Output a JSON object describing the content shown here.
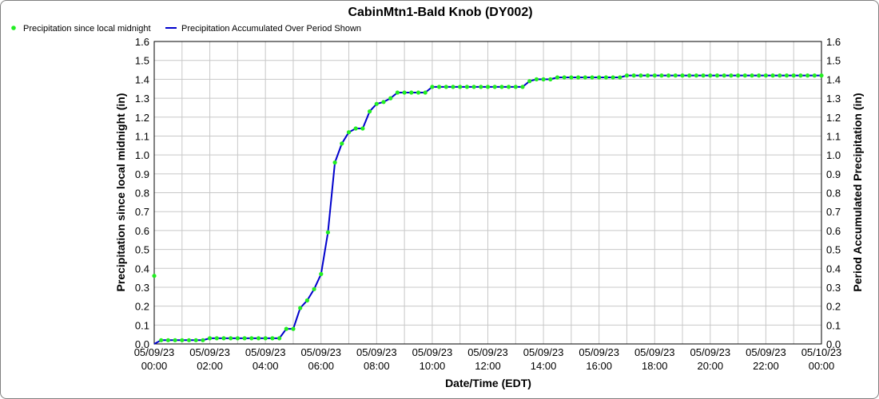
{
  "chart_data": {
    "type": "line",
    "title": "CabinMtn1-Bald Knob (DY002)",
    "xlabel": "Date/Time (EDT)",
    "ylabel_left": "Precipitation since local midnight (in)",
    "ylabel_right": "Period Accumulated Precipitation (in)",
    "ylim": [
      0,
      1.6
    ],
    "yticks": [
      "0.0",
      "0.1",
      "0.2",
      "0.3",
      "0.4",
      "0.5",
      "0.6",
      "0.7",
      "0.8",
      "0.9",
      "1.0",
      "1.1",
      "1.2",
      "1.3",
      "1.4",
      "1.5",
      "1.6"
    ],
    "xlim": [
      "05/09/23 00:00",
      "05/10/23 00:00"
    ],
    "xticks": [
      {
        "hour": 0,
        "date": "05/09/23",
        "time": "00:00"
      },
      {
        "hour": 2,
        "date": "05/09/23",
        "time": "02:00"
      },
      {
        "hour": 4,
        "date": "05/09/23",
        "time": "04:00"
      },
      {
        "hour": 6,
        "date": "05/09/23",
        "time": "06:00"
      },
      {
        "hour": 8,
        "date": "05/09/23",
        "time": "08:00"
      },
      {
        "hour": 10,
        "date": "05/09/23",
        "time": "10:00"
      },
      {
        "hour": 12,
        "date": "05/09/23",
        "time": "12:00"
      },
      {
        "hour": 14,
        "date": "05/09/23",
        "time": "14:00"
      },
      {
        "hour": 16,
        "date": "05/09/23",
        "time": "16:00"
      },
      {
        "hour": 18,
        "date": "05/09/23",
        "time": "18:00"
      },
      {
        "hour": 20,
        "date": "05/09/23",
        "time": "20:00"
      },
      {
        "hour": 22,
        "date": "05/09/23",
        "time": "22:00"
      },
      {
        "hour": 24,
        "date": "05/10/23",
        "time": "00:00"
      }
    ],
    "grid": true,
    "legend_position": "top-left",
    "series": [
      {
        "name": "Precipitation since local midnight",
        "style": "scatter",
        "color": "#22ee22",
        "x_hours": [
          0.0,
          0.25,
          0.5,
          0.75,
          1.0,
          1.25,
          1.5,
          1.75,
          2.0,
          2.25,
          2.5,
          2.75,
          3.0,
          3.25,
          3.5,
          3.75,
          4.0,
          4.25,
          4.5,
          4.75,
          5.0,
          5.25,
          5.5,
          5.75,
          6.0,
          6.25,
          6.5,
          6.75,
          7.0,
          7.25,
          7.5,
          7.75,
          8.0,
          8.25,
          8.5,
          8.75,
          9.0,
          9.25,
          9.5,
          9.75,
          10.0,
          10.25,
          10.5,
          10.75,
          11.0,
          11.25,
          11.5,
          11.75,
          12.0,
          12.25,
          12.5,
          12.75,
          13.0,
          13.25,
          13.5,
          13.75,
          14.0,
          14.25,
          14.5,
          14.75,
          15.0,
          15.25,
          15.5,
          15.75,
          16.0,
          16.25,
          16.5,
          16.75,
          17.0,
          17.25,
          17.5,
          17.75,
          18.0,
          18.25,
          18.5,
          18.75,
          19.0,
          19.25,
          19.5,
          19.75,
          20.0,
          20.25,
          20.5,
          20.75,
          21.0,
          21.25,
          21.5,
          21.75,
          22.0,
          22.25,
          22.5,
          22.75,
          23.0,
          23.25,
          23.5,
          23.75,
          24.0
        ],
        "values": [
          0.36,
          0.02,
          0.02,
          0.02,
          0.02,
          0.02,
          0.02,
          0.02,
          0.03,
          0.03,
          0.03,
          0.03,
          0.03,
          0.03,
          0.03,
          0.03,
          0.03,
          0.03,
          0.03,
          0.08,
          0.08,
          0.19,
          0.23,
          0.29,
          0.37,
          0.59,
          0.96,
          1.06,
          1.12,
          1.14,
          1.14,
          1.23,
          1.27,
          1.28,
          1.3,
          1.33,
          1.33,
          1.33,
          1.33,
          1.33,
          1.36,
          1.36,
          1.36,
          1.36,
          1.36,
          1.36,
          1.36,
          1.36,
          1.36,
          1.36,
          1.36,
          1.36,
          1.36,
          1.36,
          1.39,
          1.4,
          1.4,
          1.4,
          1.41,
          1.41,
          1.41,
          1.41,
          1.41,
          1.41,
          1.41,
          1.41,
          1.41,
          1.41,
          1.42,
          1.42,
          1.42,
          1.42,
          1.42,
          1.42,
          1.42,
          1.42,
          1.42,
          1.42,
          1.42,
          1.42,
          1.42,
          1.42,
          1.42,
          1.42,
          1.42,
          1.42,
          1.42,
          1.42,
          1.42,
          1.42,
          1.42,
          1.42,
          1.42,
          1.42,
          1.42,
          1.42,
          1.42
        ]
      },
      {
        "name": "Precipitation Accumulated Over Period Shown",
        "style": "line",
        "color": "#0000cc",
        "x_hours": [
          0.0,
          0.25,
          0.5,
          0.75,
          1.0,
          1.25,
          1.5,
          1.75,
          2.0,
          2.25,
          2.5,
          2.75,
          3.0,
          3.25,
          3.5,
          3.75,
          4.0,
          4.25,
          4.5,
          4.75,
          5.0,
          5.25,
          5.5,
          5.75,
          6.0,
          6.25,
          6.5,
          6.75,
          7.0,
          7.25,
          7.5,
          7.75,
          8.0,
          8.25,
          8.5,
          8.75,
          9.0,
          9.25,
          9.5,
          9.75,
          10.0,
          10.25,
          10.5,
          10.75,
          11.0,
          11.25,
          11.5,
          11.75,
          12.0,
          12.25,
          12.5,
          12.75,
          13.0,
          13.25,
          13.5,
          13.75,
          14.0,
          14.25,
          14.5,
          14.75,
          15.0,
          15.25,
          15.5,
          15.75,
          16.0,
          16.25,
          16.5,
          16.75,
          17.0,
          17.25,
          17.5,
          17.75,
          18.0,
          18.25,
          18.5,
          18.75,
          19.0,
          19.25,
          19.5,
          19.75,
          20.0,
          20.25,
          20.5,
          20.75,
          21.0,
          21.25,
          21.5,
          21.75,
          22.0,
          22.25,
          22.5,
          22.75,
          23.0,
          23.25,
          23.5,
          23.75,
          24.0
        ],
        "values": [
          0.0,
          0.02,
          0.02,
          0.02,
          0.02,
          0.02,
          0.02,
          0.02,
          0.03,
          0.03,
          0.03,
          0.03,
          0.03,
          0.03,
          0.03,
          0.03,
          0.03,
          0.03,
          0.03,
          0.08,
          0.08,
          0.19,
          0.23,
          0.29,
          0.37,
          0.59,
          0.96,
          1.06,
          1.12,
          1.14,
          1.14,
          1.23,
          1.27,
          1.28,
          1.3,
          1.33,
          1.33,
          1.33,
          1.33,
          1.33,
          1.36,
          1.36,
          1.36,
          1.36,
          1.36,
          1.36,
          1.36,
          1.36,
          1.36,
          1.36,
          1.36,
          1.36,
          1.36,
          1.36,
          1.39,
          1.4,
          1.4,
          1.4,
          1.41,
          1.41,
          1.41,
          1.41,
          1.41,
          1.41,
          1.41,
          1.41,
          1.41,
          1.41,
          1.42,
          1.42,
          1.42,
          1.42,
          1.42,
          1.42,
          1.42,
          1.42,
          1.42,
          1.42,
          1.42,
          1.42,
          1.42,
          1.42,
          1.42,
          1.42,
          1.42,
          1.42,
          1.42,
          1.42,
          1.42,
          1.42,
          1.42,
          1.42,
          1.42,
          1.42,
          1.42,
          1.42,
          1.42
        ]
      }
    ]
  }
}
